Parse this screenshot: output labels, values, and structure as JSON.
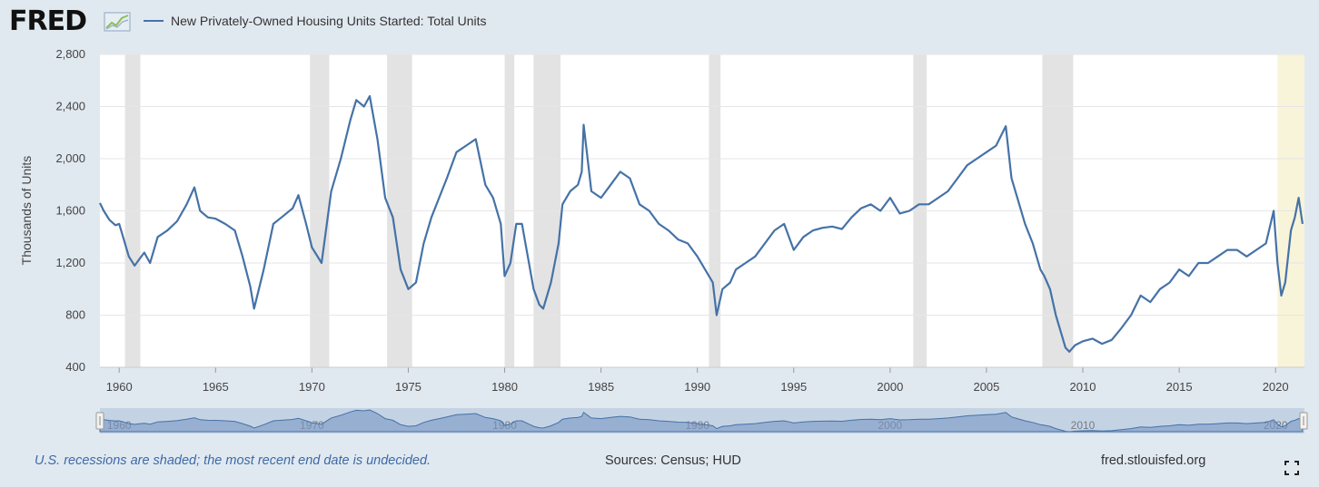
{
  "header": {
    "logo_text": "FRED",
    "legend_label": "New Privately-Owned Housing Units Started: Total Units"
  },
  "footer": {
    "note": "U.S. recessions are shaded; the most recent end date is undecided.",
    "sources": "Sources: Census; HUD",
    "site": "fred.stlouisfed.org"
  },
  "colors": {
    "line": "#4572a7",
    "recession": "#e3e3e3",
    "recent_recession": "#f7f4d9",
    "background": "#e1e9f0"
  },
  "chart_data": {
    "type": "line",
    "title": "New Privately-Owned Housing Units Started: Total Units",
    "xlabel": "",
    "ylabel": "Thousands of Units",
    "xlim": [
      1959.0,
      2021.5
    ],
    "ylim": [
      400,
      2800
    ],
    "yticks": [
      400,
      800,
      1200,
      1600,
      2000,
      2400,
      2800
    ],
    "ytick_labels": [
      "400",
      "800",
      "1,200",
      "1,600",
      "2,000",
      "2,400",
      "2,800"
    ],
    "xticks": [
      1960,
      1965,
      1970,
      1975,
      1980,
      1985,
      1990,
      1995,
      2000,
      2005,
      2010,
      2015,
      2020
    ],
    "xtick_labels": [
      "1960",
      "1965",
      "1970",
      "1975",
      "1980",
      "1985",
      "1990",
      "1995",
      "2000",
      "2005",
      "2010",
      "2015",
      "2020"
    ],
    "navigator_labels": [
      "1960",
      "1970",
      "1980",
      "1990",
      "2000",
      "2010",
      "2020"
    ],
    "recessions": [
      {
        "start": 1960.3,
        "end": 1961.1
      },
      {
        "start": 1969.9,
        "end": 1970.9
      },
      {
        "start": 1973.9,
        "end": 1975.2
      },
      {
        "start": 1980.0,
        "end": 1980.5
      },
      {
        "start": 1981.5,
        "end": 1982.9
      },
      {
        "start": 1990.6,
        "end": 1991.2
      },
      {
        "start": 2001.2,
        "end": 2001.9
      },
      {
        "start": 2007.9,
        "end": 2009.5
      }
    ],
    "recent_recession": {
      "start": 2020.1,
      "end": 2021.5
    },
    "series": [
      {
        "name": "New Privately-Owned Housing Units Started: Total Units",
        "x": [
          1959.0,
          1959.2,
          1959.5,
          1959.8,
          1960.0,
          1960.2,
          1960.5,
          1960.8,
          1961.0,
          1961.3,
          1961.6,
          1962.0,
          1962.5,
          1963.0,
          1963.5,
          1963.9,
          1964.2,
          1964.6,
          1965.0,
          1965.5,
          1966.0,
          1966.4,
          1966.8,
          1967.0,
          1967.5,
          1968.0,
          1968.5,
          1969.0,
          1969.3,
          1969.7,
          1970.0,
          1970.5,
          1971.0,
          1971.5,
          1972.0,
          1972.3,
          1972.7,
          1973.0,
          1973.4,
          1973.8,
          1974.2,
          1974.6,
          1975.0,
          1975.4,
          1975.8,
          1976.2,
          1976.6,
          1977.0,
          1977.5,
          1978.0,
          1978.5,
          1979.0,
          1979.4,
          1979.8,
          1980.0,
          1980.3,
          1980.6,
          1980.9,
          1981.2,
          1981.5,
          1981.8,
          1982.0,
          1982.4,
          1982.8,
          1983.0,
          1983.4,
          1983.8,
          1984.0,
          1984.1,
          1984.5,
          1985.0,
          1985.5,
          1986.0,
          1986.5,
          1987.0,
          1987.5,
          1988.0,
          1988.5,
          1989.0,
          1989.5,
          1990.0,
          1990.4,
          1990.8,
          1991.0,
          1991.3,
          1991.7,
          1992.0,
          1992.5,
          1993.0,
          1993.5,
          1994.0,
          1994.5,
          1995.0,
          1995.5,
          1996.0,
          1996.5,
          1997.0,
          1997.5,
          1998.0,
          1998.5,
          1999.0,
          1999.5,
          2000.0,
          2000.5,
          2001.0,
          2001.5,
          2002.0,
          2002.5,
          2003.0,
          2003.5,
          2004.0,
          2004.5,
          2005.0,
          2005.5,
          2006.0,
          2006.3,
          2006.6,
          2007.0,
          2007.4,
          2007.8,
          2008.0,
          2008.3,
          2008.6,
          2008.9,
          2009.1,
          2009.3,
          2009.6,
          2010.0,
          2010.5,
          2011.0,
          2011.5,
          2012.0,
          2012.5,
          2013.0,
          2013.5,
          2014.0,
          2014.5,
          2015.0,
          2015.5,
          2016.0,
          2016.5,
          2017.0,
          2017.5,
          2018.0,
          2018.5,
          2019.0,
          2019.5,
          2019.9,
          2020.1,
          2020.3,
          2020.5,
          2020.8,
          2021.0,
          2021.2,
          2021.4
        ],
        "values": [
          1660,
          1600,
          1530,
          1490,
          1500,
          1400,
          1250,
          1180,
          1220,
          1280,
          1200,
          1400,
          1450,
          1520,
          1650,
          1780,
          1600,
          1550,
          1540,
          1500,
          1450,
          1250,
          1020,
          850,
          1150,
          1500,
          1560,
          1620,
          1720,
          1500,
          1320,
          1200,
          1750,
          2000,
          2300,
          2450,
          2400,
          2480,
          2150,
          1700,
          1550,
          1150,
          1000,
          1050,
          1350,
          1550,
          1700,
          1850,
          2050,
          2100,
          2150,
          1800,
          1700,
          1500,
          1100,
          1200,
          1500,
          1500,
          1250,
          1000,
          880,
          850,
          1050,
          1350,
          1650,
          1750,
          1800,
          1900,
          2260,
          1750,
          1700,
          1800,
          1900,
          1850,
          1650,
          1600,
          1500,
          1450,
          1380,
          1350,
          1250,
          1150,
          1050,
          800,
          1000,
          1050,
          1150,
          1200,
          1250,
          1350,
          1450,
          1500,
          1300,
          1400,
          1450,
          1470,
          1480,
          1460,
          1550,
          1620,
          1650,
          1600,
          1700,
          1580,
          1600,
          1650,
          1650,
          1700,
          1750,
          1850,
          1950,
          2000,
          2050,
          2100,
          2250,
          1850,
          1700,
          1500,
          1350,
          1150,
          1100,
          1000,
          800,
          650,
          550,
          520,
          570,
          600,
          620,
          580,
          610,
          700,
          800,
          950,
          900,
          1000,
          1050,
          1150,
          1100,
          1200,
          1200,
          1250,
          1300,
          1300,
          1250,
          1300,
          1350,
          1600,
          1200,
          950,
          1050,
          1450,
          1550,
          1700,
          1500
        ],
        "color": "#4572a7"
      }
    ]
  }
}
